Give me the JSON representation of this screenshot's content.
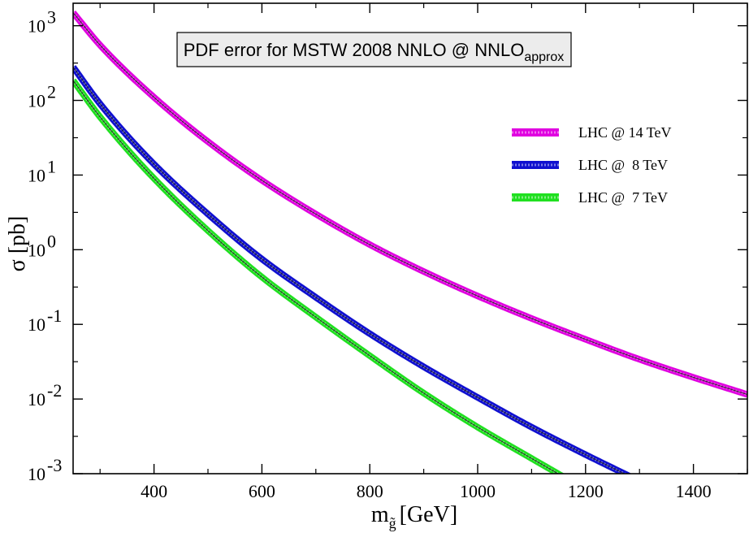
{
  "chart_data": {
    "type": "line",
    "title": {
      "main": "PDF error for MSTW 2008 NNLO @ NNLO",
      "subscript": "approx"
    },
    "xlabel": {
      "main": "m",
      "subscript": "g̃",
      "unit": "[GeV]"
    },
    "ylabel": "σ [pb]",
    "xlim": [
      250,
      1500
    ],
    "ylim": [
      0.001,
      2000
    ],
    "yscale": "log",
    "x_ticks": [
      400,
      600,
      800,
      1000,
      1200,
      1400
    ],
    "x_tick_labels": [
      "400",
      "600",
      "800",
      "1000",
      "1200",
      "1400"
    ],
    "y_ticks": [
      {
        "value": 1000,
        "base": "10",
        "exp": "3"
      },
      {
        "value": 100,
        "base": "10",
        "exp": "2"
      },
      {
        "value": 10,
        "base": "10",
        "exp": "1"
      },
      {
        "value": 1,
        "base": "10",
        "exp": "0"
      },
      {
        "value": 0.1,
        "base": "10",
        "exp": "-1"
      },
      {
        "value": 0.01,
        "base": "10",
        "exp": "-2"
      },
      {
        "value": 0.001,
        "base": "10",
        "exp": "-3"
      }
    ],
    "legend_position": "right",
    "series": [
      {
        "name": "LHC @ 14 TeV",
        "color": "#e000e0",
        "x": [
          250,
          300,
          400,
          500,
          600,
          700,
          800,
          900,
          1000,
          1100,
          1200,
          1300,
          1400,
          1500
        ],
        "y": [
          1500,
          550,
          110,
          28,
          8.5,
          3.0,
          1.17,
          0.51,
          0.24,
          0.12,
          0.063,
          0.034,
          0.0195,
          0.0115
        ]
      },
      {
        "name": "LHC @  8 TeV",
        "color": "#1010d0",
        "x": [
          250,
          300,
          400,
          500,
          600,
          700,
          800,
          900,
          1000,
          1100,
          1200,
          1285
        ],
        "y": [
          280,
          90,
          14,
          3.0,
          0.75,
          0.23,
          0.075,
          0.027,
          0.0105,
          0.0042,
          0.0018,
          0.0009
        ]
      },
      {
        "name": "LHC @  7 TeV",
        "color": "#20e020",
        "x": [
          250,
          300,
          400,
          500,
          600,
          700,
          800,
          900,
          1000,
          1100,
          1160
        ],
        "y": [
          185,
          60,
          9.0,
          1.8,
          0.43,
          0.125,
          0.038,
          0.012,
          0.0042,
          0.0016,
          0.0009
        ]
      }
    ]
  }
}
